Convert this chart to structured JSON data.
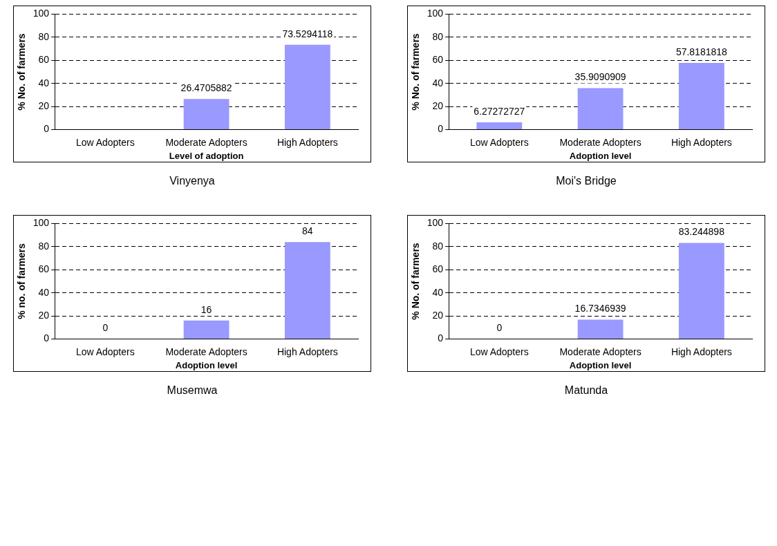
{
  "chart_data": [
    {
      "type": "bar",
      "title": "Vinyenya",
      "xlabel": "Level of adoption",
      "ylabel": "% No. of farmers",
      "categories": [
        "Low Adopters",
        "Moderate Adopters",
        "High Adopters"
      ],
      "values": [
        0,
        26.4705882,
        73.5294118
      ],
      "value_labels": [
        null,
        "26.4705882",
        "73.5294118"
      ],
      "color": "#9999ff",
      "ylim": [
        0,
        100
      ],
      "yticks": [
        0,
        20,
        40,
        60,
        80,
        100
      ],
      "grid": "y"
    },
    {
      "type": "bar",
      "title": "Moi's Bridge",
      "xlabel": "Adoption level",
      "ylabel": "% No. of farmers",
      "categories": [
        "Low Adopters",
        "Moderate Adopters",
        "High Adopters"
      ],
      "values": [
        6.27272727,
        35.9090909,
        57.8181818
      ],
      "data_labels": true,
      "color": "#9999ff",
      "ylim": [
        0,
        100
      ],
      "yticks": [
        0,
        20,
        40,
        60,
        80,
        100
      ],
      "grid": "y"
    },
    {
      "type": "bar",
      "title": "Musemwa",
      "xlabel": "Adoption level",
      "ylabel": "% no. of farmers",
      "categories": [
        "Low Adopters",
        "Moderate Adopters",
        "High Adopters"
      ],
      "values": [
        0,
        16,
        84
      ],
      "data_labels": true,
      "color": "#9999ff",
      "ylim": [
        0,
        100
      ],
      "yticks": [
        0,
        20,
        40,
        60,
        80,
        100
      ],
      "grid": "y"
    },
    {
      "type": "bar",
      "title": "Matunda",
      "xlabel": "Adoption level",
      "ylabel": "% No. of farmers",
      "categories": [
        "Low Adopters",
        "Moderate Adopters",
        "High Adopters"
      ],
      "values": [
        0,
        16.7346939,
        83.244898
      ],
      "data_labels": true,
      "color": "#9999ff",
      "ylim": [
        0,
        100
      ],
      "yticks": [
        0,
        20,
        40,
        60,
        80,
        100
      ],
      "grid": "y"
    }
  ]
}
